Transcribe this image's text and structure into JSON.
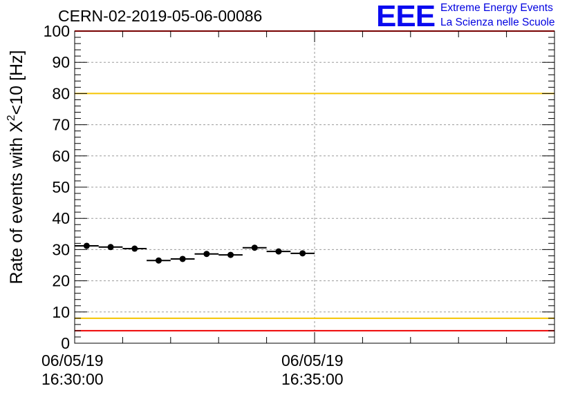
{
  "header": {
    "run_id": "CERN-02-2019-05-06-00086",
    "logo_text": "EEE",
    "logo_line1": "Extreme Energy Events",
    "logo_line2": "La Scienza nelle Scuole"
  },
  "colors": {
    "marker": "#000000",
    "red_limit": "#ee0000",
    "yellow_limit": "#f5c400",
    "grid": "#9a9a9a",
    "logo": "#0a0af0"
  },
  "chart_data": {
    "type": "scatter",
    "title": "CERN-02-2019-05-06-00086",
    "ylabel_parts": [
      "Rate of events with X",
      "2",
      "<10 [Hz]"
    ],
    "ylim": [
      0,
      100
    ],
    "yticks": [
      0,
      10,
      20,
      30,
      40,
      50,
      60,
      70,
      80,
      90,
      100
    ],
    "xlim": [
      "06/05/19 16:30:00",
      "06/05/19 16:35:00",
      "06/05/19 16:40:00"
    ],
    "xtick_labels": [
      {
        "date": "06/05/19",
        "time": "16:30:00"
      },
      {
        "date": "06/05/19",
        "time": "16:35:00"
      }
    ],
    "grid": true,
    "reference_lines": [
      {
        "y": 100,
        "color": "red"
      },
      {
        "y": 80,
        "color": "yellow"
      },
      {
        "y": 8,
        "color": "yellow"
      },
      {
        "y": 4,
        "color": "red"
      }
    ],
    "points": [
      {
        "x_start": "16:30:00",
        "x_end": "16:30:30",
        "y": 31.2
      },
      {
        "x_start": "16:30:30",
        "x_end": "16:31:00",
        "y": 30.8
      },
      {
        "x_start": "16:31:00",
        "x_end": "16:31:30",
        "y": 30.3
      },
      {
        "x_start": "16:31:30",
        "x_end": "16:32:00",
        "y": 26.5
      },
      {
        "x_start": "16:32:00",
        "x_end": "16:32:30",
        "y": 27.0
      },
      {
        "x_start": "16:32:30",
        "x_end": "16:33:00",
        "y": 28.6
      },
      {
        "x_start": "16:33:00",
        "x_end": "16:33:30",
        "y": 28.3
      },
      {
        "x_start": "16:33:30",
        "x_end": "16:34:00",
        "y": 30.6
      },
      {
        "x_start": "16:34:00",
        "x_end": "16:34:30",
        "y": 29.4
      },
      {
        "x_start": "16:34:30",
        "x_end": "16:35:00",
        "y": 28.8
      }
    ]
  }
}
